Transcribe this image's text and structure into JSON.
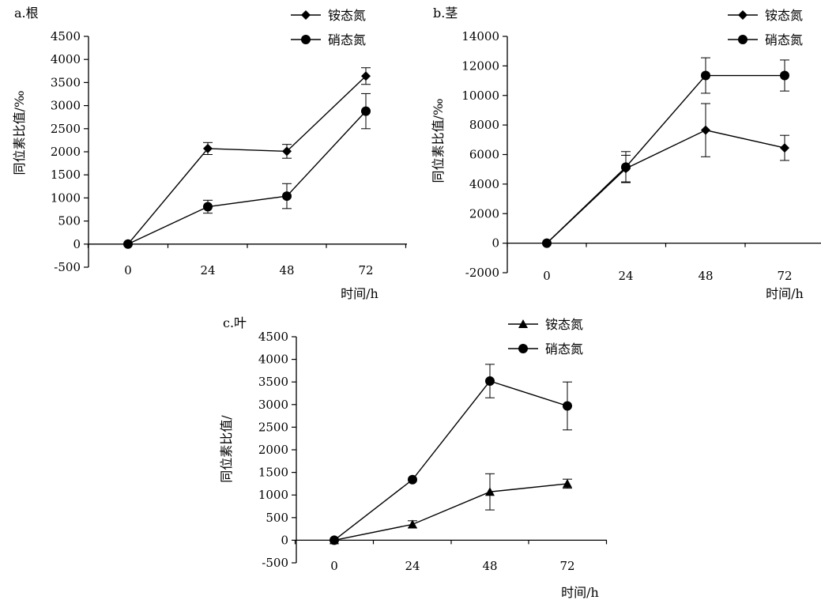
{
  "chart_data": [
    {
      "type": "line",
      "title": "a.根",
      "xlabel": "时间/h",
      "ylabel": "同位素比值/‰",
      "categories": [
        "0",
        "24",
        "48",
        "72"
      ],
      "ylim": [
        -500,
        4500
      ],
      "yticks": [
        -500,
        0,
        500,
        1000,
        1500,
        2000,
        2500,
        3000,
        3500,
        4000,
        4500
      ],
      "series": [
        {
          "name": "铵态氮",
          "marker": "diamond",
          "values": [
            0,
            2070,
            2010,
            3640
          ],
          "errors": [
            0,
            130,
            150,
            180
          ]
        },
        {
          "name": "硝态氮",
          "marker": "circle",
          "values": [
            0,
            810,
            1040,
            2880
          ],
          "errors": [
            0,
            140,
            270,
            380
          ]
        }
      ]
    },
    {
      "type": "line",
      "title": "b.茎",
      "xlabel": "时间/h",
      "ylabel": "同位素比值/‰",
      "categories": [
        "0",
        "24",
        "48",
        "72"
      ],
      "ylim": [
        -2000,
        14000
      ],
      "yticks": [
        -2000,
        0,
        2000,
        4000,
        6000,
        8000,
        10000,
        12000,
        14000
      ],
      "series": [
        {
          "name": "铵态氮",
          "marker": "diamond",
          "values": [
            0,
            5050,
            7650,
            6450
          ],
          "errors": [
            0,
            900,
            1800,
            850
          ]
        },
        {
          "name": "硝态氮",
          "marker": "circle",
          "values": [
            0,
            5150,
            11350,
            11350
          ],
          "errors": [
            0,
            1050,
            1200,
            1050
          ]
        }
      ]
    },
    {
      "type": "line",
      "title": "c.叶",
      "xlabel": "时间/h",
      "ylabel": "同位素比值/",
      "categories": [
        "0",
        "24",
        "48",
        "72"
      ],
      "ylim": [
        -500,
        4500
      ],
      "yticks": [
        -500,
        0,
        500,
        1000,
        1500,
        2000,
        2500,
        3000,
        3500,
        4000,
        4500
      ],
      "series": [
        {
          "name": "铵态氮",
          "marker": "triangle",
          "values": [
            0,
            350,
            1070,
            1250
          ],
          "errors": [
            0,
            80,
            400,
            100
          ]
        },
        {
          "name": "硝态氮",
          "marker": "circle",
          "values": [
            0,
            1340,
            3520,
            2970
          ],
          "errors": [
            0,
            0,
            370,
            530
          ]
        }
      ]
    }
  ]
}
